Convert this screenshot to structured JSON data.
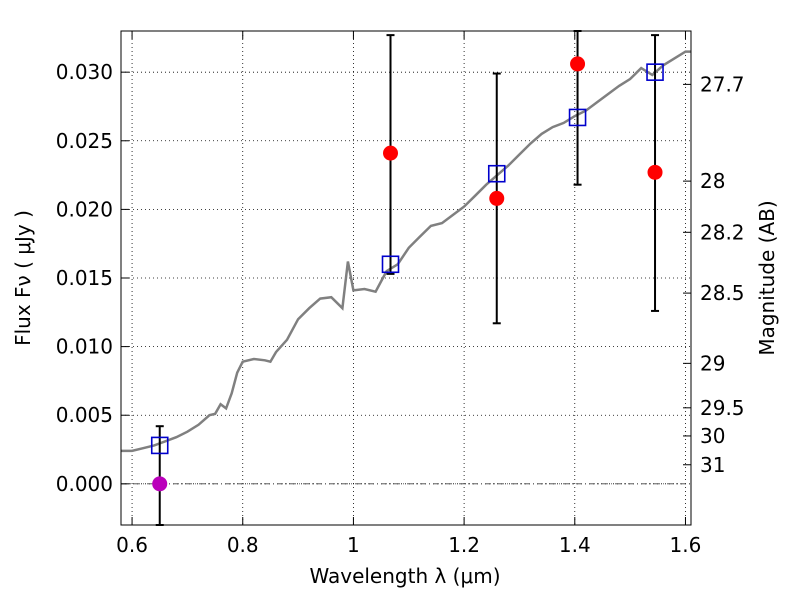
{
  "chart_data": {
    "type": "scatter",
    "xlabel": "Wavelength  λ (μm)",
    "ylabel_left": "Flux  Fν  ( μJy )",
    "ylabel_right": "Magnitude (AB)",
    "xlim": [
      0.58,
      1.61
    ],
    "ylim": [
      -0.003,
      0.033
    ],
    "x_ticks": [
      {
        "value": 0.6,
        "label": "0.6"
      },
      {
        "value": 0.8,
        "label": "0.8"
      },
      {
        "value": 1.0,
        "label": "1"
      },
      {
        "value": 1.2,
        "label": "1.2"
      },
      {
        "value": 1.4,
        "label": "1.4"
      },
      {
        "value": 1.6,
        "label": "1.6"
      }
    ],
    "y_ticks": [
      {
        "value": 0.0,
        "label": "0.000"
      },
      {
        "value": 0.005,
        "label": "0.005"
      },
      {
        "value": 0.01,
        "label": "0.010"
      },
      {
        "value": 0.015,
        "label": "0.015"
      },
      {
        "value": 0.02,
        "label": "0.020"
      },
      {
        "value": 0.025,
        "label": "0.025"
      },
      {
        "value": 0.03,
        "label": "0.030"
      }
    ],
    "mag_ticks": [
      {
        "flux": 0.02911,
        "label": "27.7"
      },
      {
        "flux": 0.02206,
        "label": "28"
      },
      {
        "flux": 0.01833,
        "label": "28.2"
      },
      {
        "flux": 0.0139,
        "label": "28.5"
      },
      {
        "flux": 0.00878,
        "label": "29"
      },
      {
        "flux": 0.00554,
        "label": "29.5"
      },
      {
        "flux": 0.00349,
        "label": "30"
      },
      {
        "flux": 0.00139,
        "label": "31"
      }
    ],
    "grid": true,
    "zero_line": true,
    "colors": {
      "model": "#808080",
      "observed": "#ff0000",
      "nondetection": "#bb00bb",
      "model_photometry": "#0000cc",
      "errorbar": "#000000",
      "zero_line": "#444444"
    },
    "model_spectrum": {
      "x": [
        0.58,
        0.6,
        0.62,
        0.64,
        0.66,
        0.68,
        0.7,
        0.72,
        0.74,
        0.75,
        0.76,
        0.77,
        0.78,
        0.79,
        0.8,
        0.82,
        0.84,
        0.85,
        0.86,
        0.88,
        0.9,
        0.92,
        0.94,
        0.96,
        0.98,
        0.99,
        1.0,
        1.02,
        1.04,
        1.06,
        1.08,
        1.1,
        1.12,
        1.14,
        1.16,
        1.18,
        1.2,
        1.22,
        1.24,
        1.26,
        1.28,
        1.3,
        1.32,
        1.34,
        1.36,
        1.38,
        1.4,
        1.42,
        1.44,
        1.46,
        1.48,
        1.5,
        1.52,
        1.54,
        1.56,
        1.58,
        1.6,
        1.61
      ],
      "y": [
        0.0024,
        0.0024,
        0.0026,
        0.0028,
        0.0031,
        0.0034,
        0.0038,
        0.0043,
        0.005,
        0.0051,
        0.0058,
        0.0055,
        0.0066,
        0.0081,
        0.0089,
        0.0091,
        0.009,
        0.0089,
        0.0096,
        0.0105,
        0.012,
        0.0128,
        0.0135,
        0.0136,
        0.0128,
        0.0162,
        0.0141,
        0.0142,
        0.014,
        0.0155,
        0.016,
        0.0172,
        0.018,
        0.0188,
        0.019,
        0.0196,
        0.0202,
        0.021,
        0.0218,
        0.0225,
        0.0232,
        0.024,
        0.0248,
        0.0255,
        0.026,
        0.0263,
        0.0268,
        0.0272,
        0.0278,
        0.0284,
        0.029,
        0.0295,
        0.0303,
        0.0298,
        0.0305,
        0.031,
        0.0315,
        0.0315
      ]
    },
    "observed": [
      {
        "x": 1.067,
        "y": 0.0241,
        "err_low": 0.0153,
        "err_high": 0.0327
      },
      {
        "x": 1.259,
        "y": 0.0208,
        "err_low": 0.0117,
        "err_high": 0.0299
      },
      {
        "x": 1.405,
        "y": 0.0306,
        "err_low": 0.0218,
        "err_high": 0.033
      },
      {
        "x": 1.545,
        "y": 0.0227,
        "err_low": 0.0126,
        "err_high": 0.0327
      }
    ],
    "nondetection": [
      {
        "x": 0.65,
        "y": 0.0,
        "err_low": -0.003,
        "err_high": 0.0042
      }
    ],
    "model_photometry": [
      {
        "x": 0.65,
        "y": 0.0028
      },
      {
        "x": 1.067,
        "y": 0.016
      },
      {
        "x": 1.259,
        "y": 0.0226
      },
      {
        "x": 1.405,
        "y": 0.0267
      },
      {
        "x": 1.545,
        "y": 0.03
      }
    ]
  }
}
